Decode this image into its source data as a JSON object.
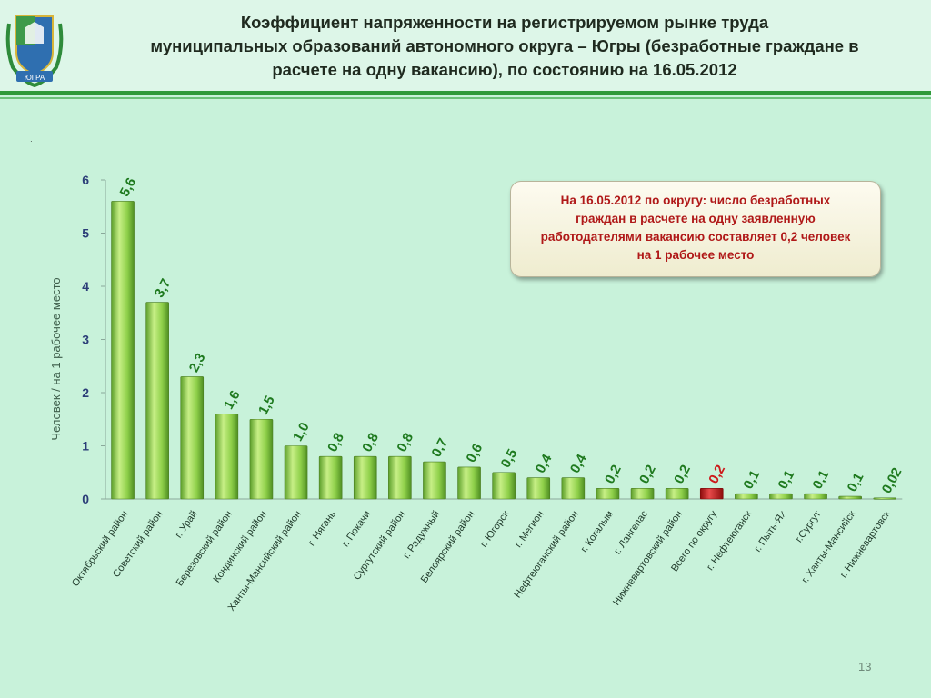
{
  "header": {
    "title_lines": [
      "Коэффициент напряженности на регистрируемом рынке труда",
      "муниципальных образований автономного округа – Югры (безработные граждане в",
      "расчете на одну вакансию), по состоянию на 16.05.2012"
    ],
    "emblem_text": "ЮГРА"
  },
  "note": {
    "lines": [
      "На 16.05.2012 по округу: число безработных",
      "граждан в расчете на одну заявленную",
      "работодателями вакансию составляет 0,2 человек",
      "на 1 рабочее место"
    ]
  },
  "page_number": "13",
  "colors": {
    "bar": "#8fd04a",
    "highlight_bar": "#cc1a1a",
    "label": "#1f7a1f",
    "highlight_label": "#cc1a1a",
    "axis_text": "#2c3e78"
  },
  "chart_data": {
    "type": "bar",
    "categories": [
      "Октябрьский район",
      "Советский район",
      "г. Урай",
      "Березовский район",
      "Кондинский район",
      "Ханты-Мансийский район",
      "г. Нягань",
      "г. Покачи",
      "Сургутский район",
      "г. Радужный",
      "Белоярский район",
      "г. Югорск",
      "г. Мегион",
      "Нефтеюганский район",
      "г. Когалым",
      "г. Лангепас",
      "Нижневартовский район",
      "Всего по округу",
      "г. Нефтеюганск",
      "г. Пыть-Ях",
      "г.Сургут",
      "г. Ханты-Мансийск",
      "г. Нижневартовск"
    ],
    "values": [
      5.6,
      3.7,
      2.3,
      1.6,
      1.5,
      1.0,
      0.8,
      0.8,
      0.8,
      0.7,
      0.6,
      0.5,
      0.4,
      0.4,
      0.2,
      0.2,
      0.2,
      0.2,
      0.1,
      0.1,
      0.1,
      0.05,
      0.02
    ],
    "data_labels": [
      "5,6",
      "3,7",
      "2,3",
      "1,6",
      "1,5",
      "1,0",
      "0,8",
      "0,8",
      "0,8",
      "0,7",
      "0,6",
      "0,5",
      "0,4",
      "0,4",
      "0,2",
      "0,2",
      "0,2",
      "0,2",
      "0,1",
      "0,1",
      "0,1",
      "0,1",
      "0,02"
    ],
    "highlight_category": "Всего по округу",
    "ylabel": "Человек / на 1 рабочее место",
    "ylim": [
      0,
      6
    ],
    "yticks": [
      "0",
      "1",
      "2",
      "3",
      "4",
      "5",
      "6"
    ],
    "grid": false
  }
}
